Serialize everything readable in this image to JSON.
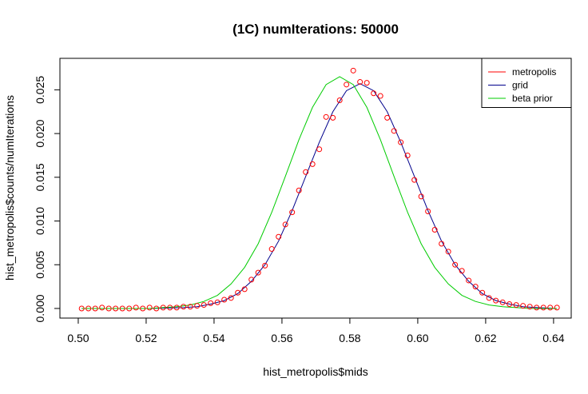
{
  "chart_data": {
    "type": "scatter-line",
    "title": "(1C) numIterations:  50000",
    "xlabel": "hist_metropolis$mids",
    "ylabel": "hist_metropolis$counts/numIterations",
    "xlim": [
      0.4946,
      0.6452
    ],
    "ylim": [
      -0.0011,
      0.0286
    ],
    "xticks": [
      {
        "value": 0.5,
        "label": "0.50"
      },
      {
        "value": 0.52,
        "label": "0.52"
      },
      {
        "value": 0.54,
        "label": "0.54"
      },
      {
        "value": 0.56,
        "label": "0.56"
      },
      {
        "value": 0.58,
        "label": "0.58"
      },
      {
        "value": 0.6,
        "label": "0.60"
      },
      {
        "value": 0.62,
        "label": "0.62"
      },
      {
        "value": 0.64,
        "label": "0.64"
      }
    ],
    "yticks": [
      {
        "value": 0,
        "label": "0.000"
      },
      {
        "value": 0.005,
        "label": "0.005"
      },
      {
        "value": 0.01,
        "label": "0.010"
      },
      {
        "value": 0.015,
        "label": "0.015"
      },
      {
        "value": 0.02,
        "label": "0.020"
      },
      {
        "value": 0.025,
        "label": "0.025"
      }
    ],
    "legend": "top-right",
    "series": [
      {
        "name": "metropolis",
        "color": "#ff0000",
        "style": "points",
        "x": [
          0.501,
          0.503,
          0.505,
          0.507,
          0.509,
          0.511,
          0.513,
          0.515,
          0.517,
          0.519,
          0.521,
          0.523,
          0.525,
          0.527,
          0.529,
          0.531,
          0.533,
          0.535,
          0.537,
          0.539,
          0.541,
          0.543,
          0.545,
          0.547,
          0.549,
          0.551,
          0.553,
          0.555,
          0.557,
          0.559,
          0.561,
          0.563,
          0.565,
          0.567,
          0.569,
          0.571,
          0.573,
          0.575,
          0.577,
          0.579,
          0.581,
          0.583,
          0.585,
          0.587,
          0.589,
          0.591,
          0.593,
          0.595,
          0.597,
          0.599,
          0.601,
          0.603,
          0.605,
          0.607,
          0.609,
          0.611,
          0.613,
          0.615,
          0.617,
          0.619,
          0.621,
          0.623,
          0.625,
          0.627,
          0.629,
          0.631,
          0.633,
          0.635,
          0.637,
          0.639,
          0.641
        ],
        "values": [
          0,
          0,
          0,
          0.0001,
          0,
          0,
          0,
          0,
          0.0001,
          0,
          0.0001,
          0,
          0.0001,
          0.0001,
          0.0001,
          0.0002,
          0.0002,
          0.0003,
          0.0004,
          0.0006,
          0.0007,
          0.001,
          0.0012,
          0.0018,
          0.0022,
          0.0033,
          0.0041,
          0.0049,
          0.0068,
          0.0082,
          0.0096,
          0.011,
          0.0135,
          0.0156,
          0.0165,
          0.0182,
          0.0219,
          0.0218,
          0.0238,
          0.0256,
          0.0272,
          0.0259,
          0.0258,
          0.0246,
          0.0243,
          0.0218,
          0.0203,
          0.019,
          0.0175,
          0.0147,
          0.0128,
          0.0111,
          0.009,
          0.0074,
          0.0065,
          0.005,
          0.0043,
          0.0032,
          0.0025,
          0.0018,
          0.0012,
          0.0009,
          0.0007,
          0.0005,
          0.0004,
          0.0003,
          0.0002,
          0.0001,
          0.0001,
          0.0001,
          0.0001
        ]
      },
      {
        "name": "grid",
        "color": "#00008b",
        "style": "line",
        "x": [
          0.501,
          0.511,
          0.521,
          0.531,
          0.535,
          0.539,
          0.543,
          0.547,
          0.551,
          0.555,
          0.559,
          0.563,
          0.567,
          0.571,
          0.575,
          0.579,
          0.583,
          0.587,
          0.591,
          0.595,
          0.599,
          0.603,
          0.607,
          0.611,
          0.615,
          0.619,
          0.623,
          0.627,
          0.631,
          0.635,
          0.641
        ],
        "values": [
          0,
          0,
          0,
          0.0001,
          0.0002,
          0.0005,
          0.0009,
          0.0017,
          0.0031,
          0.005,
          0.0077,
          0.0112,
          0.0151,
          0.019,
          0.0225,
          0.0249,
          0.0257,
          0.0249,
          0.0225,
          0.019,
          0.0151,
          0.0112,
          0.0077,
          0.005,
          0.0031,
          0.0017,
          0.0009,
          0.0005,
          0.0002,
          0.0001,
          0
        ]
      },
      {
        "name": "beta prior",
        "color": "#00cc00",
        "style": "line",
        "x": [
          0.501,
          0.511,
          0.521,
          0.529,
          0.533,
          0.537,
          0.541,
          0.545,
          0.549,
          0.553,
          0.557,
          0.561,
          0.565,
          0.569,
          0.573,
          0.577,
          0.581,
          0.585,
          0.589,
          0.593,
          0.597,
          0.601,
          0.605,
          0.609,
          0.613,
          0.617,
          0.621,
          0.625,
          0.633,
          0.641
        ],
        "values": [
          0,
          0,
          0,
          0.0002,
          0.0004,
          0.0008,
          0.0015,
          0.0028,
          0.0047,
          0.0074,
          0.011,
          0.0151,
          0.0193,
          0.023,
          0.0256,
          0.0265,
          0.0256,
          0.023,
          0.0193,
          0.0151,
          0.011,
          0.0074,
          0.0047,
          0.0028,
          0.0015,
          0.0008,
          0.0004,
          0.0002,
          0,
          0
        ]
      }
    ]
  }
}
